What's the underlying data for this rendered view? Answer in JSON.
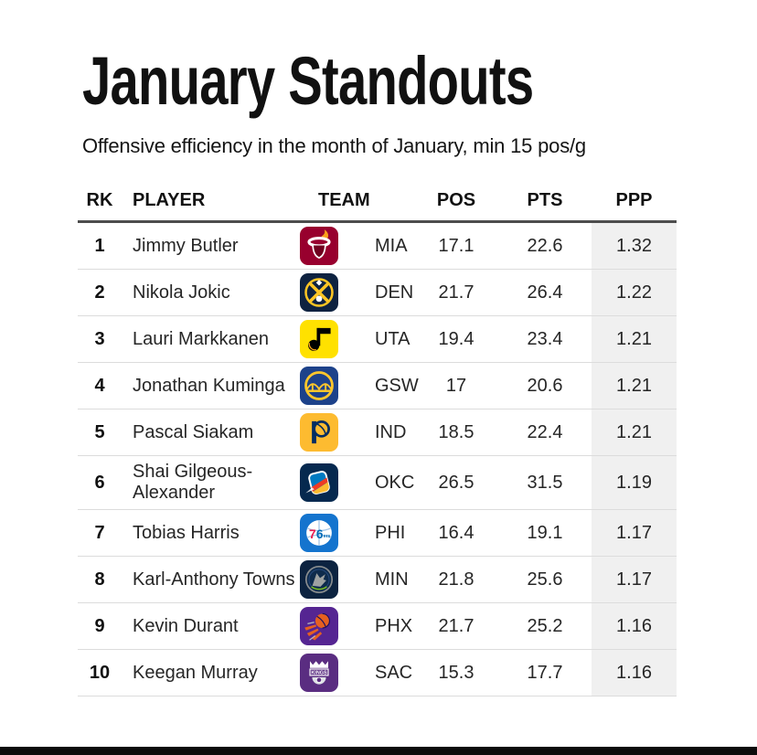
{
  "chart_data": {
    "type": "table",
    "title": "January Standouts",
    "subtitle": "Offensive efficiency in the month of January, min 15 pos/g",
    "columns": [
      "RK",
      "PLAYER",
      "TEAM",
      "POS",
      "PTS",
      "PPP"
    ],
    "highlight_column": "PPP",
    "colors": {
      "highlight_band": "#f0f0f0",
      "header_rule": "#4d4d4d",
      "row_rule": "#dcdcdc",
      "bottom_bar": "#0b0b0b"
    },
    "rows": [
      {
        "rank": "1",
        "player": "Jimmy Butler",
        "team": "MIA",
        "logo_icon": "miami-heat-logo-icon",
        "logo_bg": "#98002E",
        "logo_accent": "#F9A01B",
        "pos": "17.1",
        "pts": "22.6",
        "ppp": "1.32"
      },
      {
        "rank": "2",
        "player": "Nikola Jokic",
        "team": "DEN",
        "logo_icon": "denver-nuggets-logo-icon",
        "logo_bg": "#0E2240",
        "logo_accent": "#FEC524",
        "pos": "21.7",
        "pts": "26.4",
        "ppp": "1.22"
      },
      {
        "rank": "3",
        "player": "Lauri Markkanen",
        "team": "UTA",
        "logo_icon": "utah-jazz-logo-icon",
        "logo_bg": "#FFE100",
        "logo_accent": "#000000",
        "pos": "19.4",
        "pts": "23.4",
        "ppp": "1.21"
      },
      {
        "rank": "4",
        "player": "Jonathan Kuminga",
        "team": "GSW",
        "logo_icon": "golden-state-warriors-logo-icon",
        "logo_bg": "#1D428A",
        "logo_accent": "#FFC72C",
        "pos": "17",
        "pts": "20.6",
        "ppp": "1.21"
      },
      {
        "rank": "5",
        "player": "Pascal Siakam",
        "team": "IND",
        "logo_icon": "indiana-pacers-logo-icon",
        "logo_bg": "#FDBB30",
        "logo_accent": "#002D62",
        "pos": "18.5",
        "pts": "22.4",
        "ppp": "1.21"
      },
      {
        "rank": "6",
        "player": "Shai Gilgeous-Alexander",
        "team": "OKC",
        "logo_icon": "oklahoma-city-thunder-logo-icon",
        "logo_bg": "#06294F",
        "logo_accent": "#007AC1",
        "pos": "26.5",
        "pts": "31.5",
        "ppp": "1.19"
      },
      {
        "rank": "7",
        "player": "Tobias Harris",
        "team": "PHI",
        "logo_icon": "philadelphia-76ers-logo-icon",
        "logo_bg": "#1474CE",
        "logo_accent": "#ED174C",
        "pos": "16.4",
        "pts": "19.1",
        "ppp": "1.17"
      },
      {
        "rank": "8",
        "player": "Karl-Anthony Towns",
        "team": "MIN",
        "logo_icon": "minnesota-timberwolves-logo-icon",
        "logo_bg": "#0C2340",
        "logo_accent": "#9EA2A2",
        "pos": "21.8",
        "pts": "25.6",
        "ppp": "1.17"
      },
      {
        "rank": "9",
        "player": "Kevin Durant",
        "team": "PHX",
        "logo_icon": "phoenix-suns-logo-icon",
        "logo_bg": "#552592",
        "logo_accent": "#E56020",
        "pos": "21.7",
        "pts": "25.2",
        "ppp": "1.16"
      },
      {
        "rank": "10",
        "player": "Keegan Murray",
        "team": "SAC",
        "logo_icon": "sacramento-kings-logo-icon",
        "logo_bg": "#5A2D81",
        "logo_accent": "#FFFFFF",
        "pos": "15.3",
        "pts": "17.7",
        "ppp": "1.16"
      }
    ]
  }
}
